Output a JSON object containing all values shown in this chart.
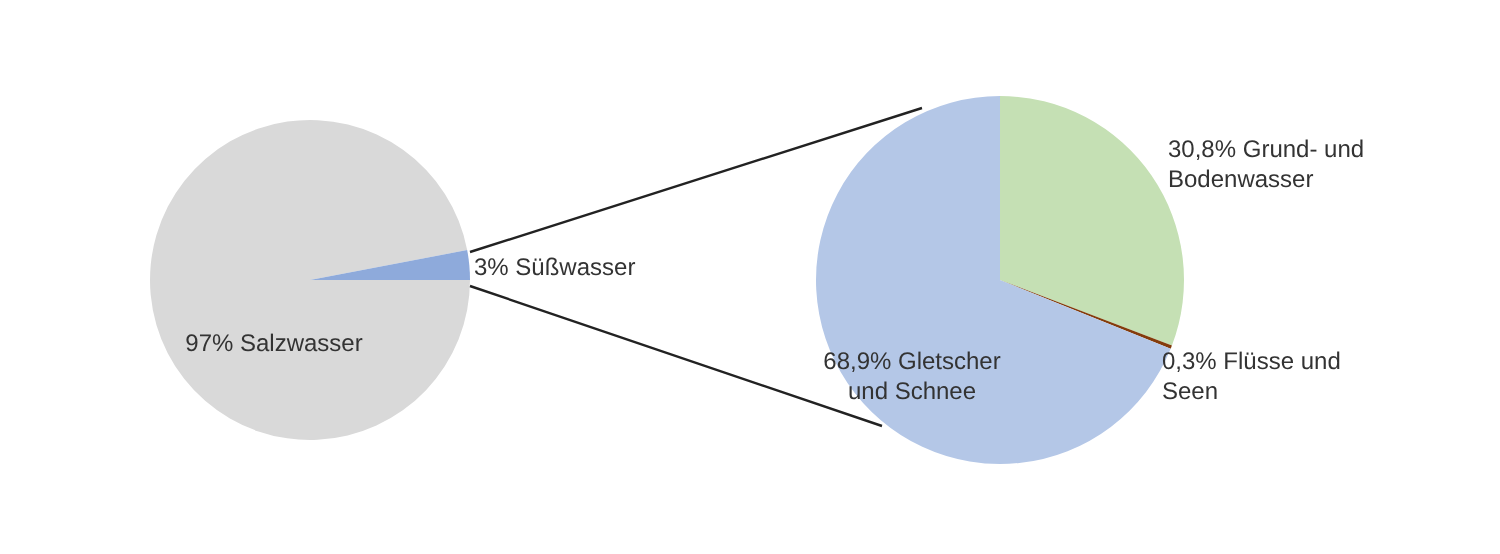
{
  "chart_data": [
    {
      "type": "pie",
      "categories": [
        "Salzwasser",
        "Süßwasser"
      ],
      "values": [
        97,
        3
      ],
      "colors": [
        "#d9d9d9",
        "#8eaadb"
      ],
      "value_labels": [
        "97%",
        "3%"
      ],
      "legend": false
    },
    {
      "type": "pie",
      "categories": [
        "Grund- und Bodenwasser",
        "Flüsse und Seen",
        "Gletscher und Schnee"
      ],
      "values": [
        30.8,
        0.3,
        68.9
      ],
      "colors": [
        "#c5e0b4",
        "#843c0c",
        "#b4c7e7"
      ],
      "value_labels": [
        "30,8%",
        "0,3%",
        "68,9%"
      ],
      "legend": false
    }
  ]
}
